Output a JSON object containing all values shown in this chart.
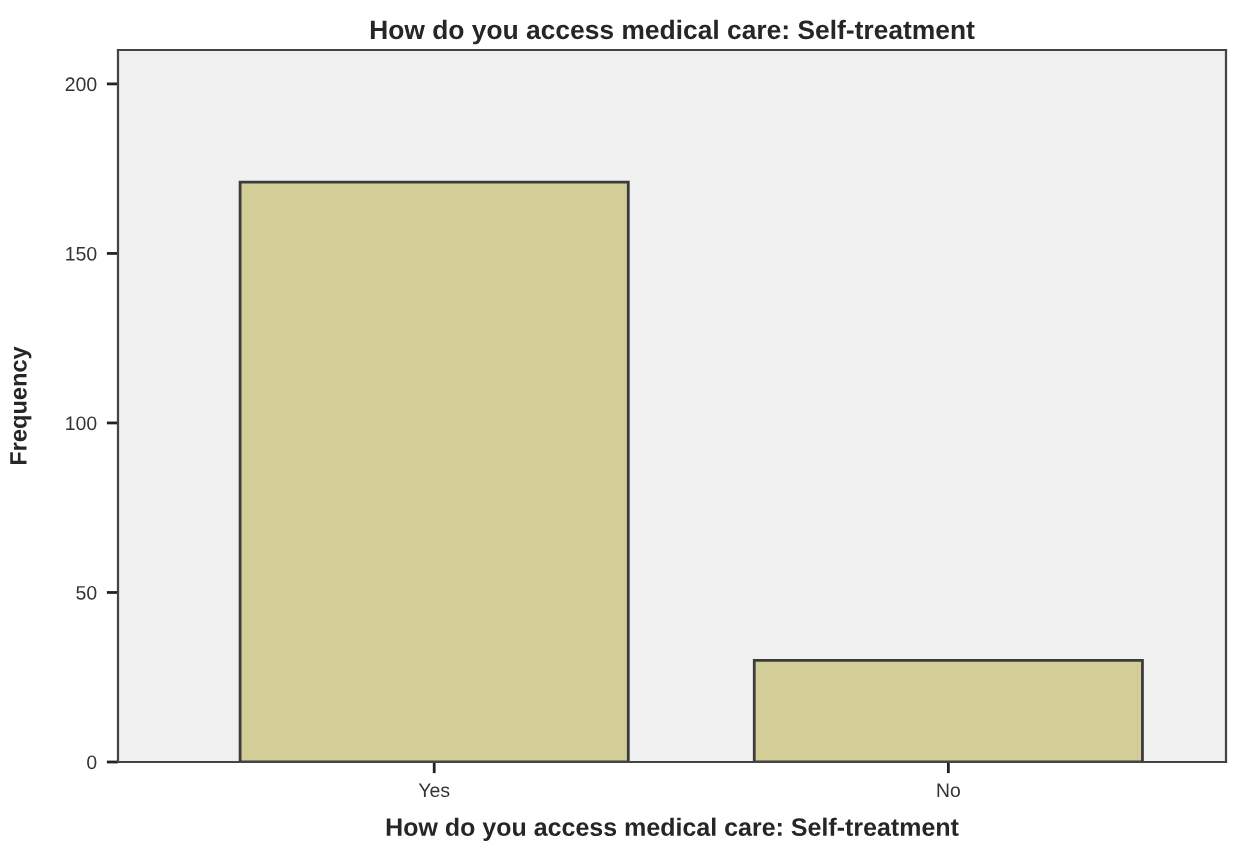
{
  "chart_data": {
    "type": "bar",
    "title": "How do you access medical care: Self-treatment",
    "xlabel": "How do you access medical care: Self-treatment",
    "ylabel": "Frequency",
    "categories": [
      "Yes",
      "No"
    ],
    "values": [
      171,
      30
    ],
    "color": "#d3ce97",
    "ylim": [
      0,
      210
    ],
    "yticks": [
      0,
      50,
      100,
      150,
      200
    ],
    "grid": false,
    "legend": false
  }
}
